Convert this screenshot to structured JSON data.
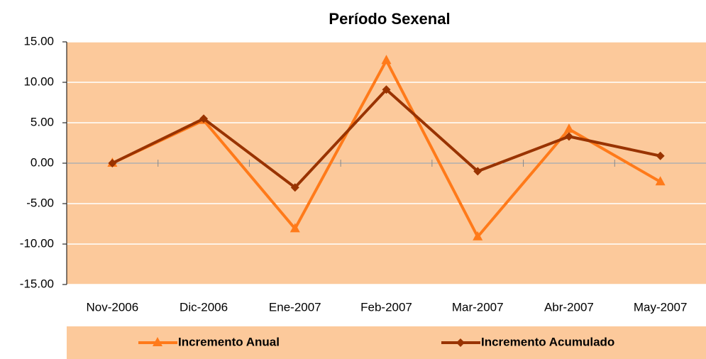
{
  "chart_data": {
    "type": "line",
    "title": "Período Sexenal",
    "categories": [
      "Nov-2006",
      "Dic-2006",
      "Ene-2007",
      "Feb-2007",
      "Mar-2007",
      "Abr-2007",
      "May-2007"
    ],
    "series": [
      {
        "name": "Incremento Anual",
        "color": "#ff7a1a",
        "marker": "triangle",
        "values": [
          0,
          5.3,
          -8.1,
          12.7,
          -9.1,
          4.2,
          -2.3
        ]
      },
      {
        "name": "Incremento Acumulado",
        "color": "#993300",
        "marker": "diamond",
        "values": [
          0,
          5.5,
          -3.0,
          9.1,
          -1.0,
          3.3,
          0.9
        ]
      }
    ],
    "ylim": [
      -15,
      15
    ],
    "yticks": [
      {
        "value": -15,
        "label": "-15.00"
      },
      {
        "value": -10,
        "label": "-10.00"
      },
      {
        "value": -5,
        "label": "-5.00"
      },
      {
        "value": 0,
        "label": "0.00"
      },
      {
        "value": 5,
        "label": "5.00"
      },
      {
        "value": 10,
        "label": "10.00"
      },
      {
        "value": 15,
        "label": "15.00"
      }
    ],
    "grid": true,
    "plot_background": "#fcc99b",
    "legend": "bottom"
  }
}
